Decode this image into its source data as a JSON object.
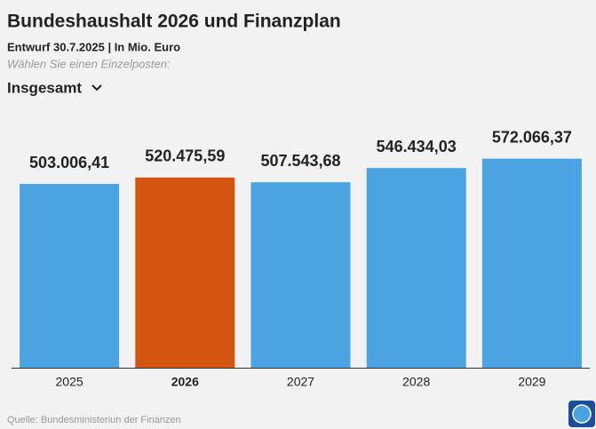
{
  "chart_data": {
    "type": "bar",
    "title": "Bundeshaushalt 2026 und Finanzplan",
    "subtitle": "Entwurf 30.7.2025 | In Mio. Euro",
    "prompt": "Wählen Sie einen Einzelposten:",
    "dropdown": "Insgesamt",
    "source": "Quelle: Bundesministeriun der Finanzen",
    "categories": [
      "2025",
      "2026",
      "2027",
      "2028",
      "2029"
    ],
    "values": [
      503006.41,
      520475.59,
      507543.68,
      546434.03,
      572066.37
    ],
    "value_labels": [
      "503.006,41",
      "520.475,59",
      "507.543,68",
      "546.434,03",
      "572.066,37"
    ],
    "colors": [
      "#4ba3e1",
      "#d4550f",
      "#4ba3e1",
      "#4ba3e1",
      "#4ba3e1"
    ],
    "highlight_color": "#d4550f",
    "ylim": [
      0,
      700000
    ]
  }
}
